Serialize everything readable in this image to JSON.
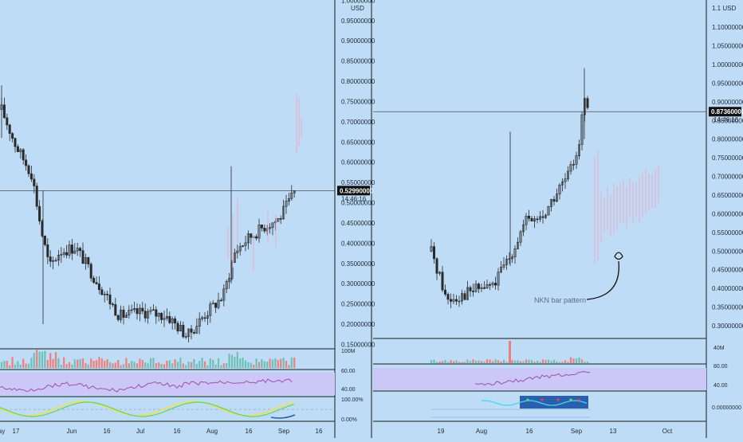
{
  "colors": {
    "background": "#bfdcf6",
    "up": "#2a2a2a",
    "down": "#2a2a2a",
    "ghost": "#e2b3cf",
    "vol_up": "#6ec0b6",
    "vol_down": "#ee7f7a",
    "rsi": "#9c4fae",
    "rsi_band": "#cbc8f8",
    "osc_cyan": "#40d9e8",
    "osc_blue": "#2a5fb0",
    "osc_yellow": "#f5e23a",
    "osc_green": "#5cd66a",
    "osc_red": "#e04848",
    "axis_text": "#1e2a36",
    "divider": "#1a1a1a"
  },
  "chart_data": [
    {
      "type": "candlestick",
      "title": "",
      "currency": "USD",
      "y_ticks": [
        "1.00000000",
        "0.95000000",
        "0.90000000",
        "0.85000000",
        "0.80000000",
        "0.75000000",
        "0.70000000",
        "0.65000000",
        "0.60000000",
        "0.55000000",
        "0.50000000",
        "0.45000000",
        "0.40000000",
        "0.35000000",
        "0.30000000",
        "0.25000000",
        "0.20000000",
        "0.15000000"
      ],
      "ylim": [
        0.15,
        1.0
      ],
      "x_ticks": [
        "ay",
        "17",
        "Jun",
        "16",
        "Jul",
        "16",
        "Aug",
        "16",
        "Sep",
        "16"
      ],
      "last_price": "0.52990000",
      "countdown": "14:46:16",
      "indicators": {
        "volume_label": "100M",
        "rsi_levels": [
          "60.00",
          "40.00"
        ],
        "osc_levels": [
          "100.00%",
          "0.00%"
        ]
      }
    },
    {
      "type": "candlestick",
      "title": "",
      "annotation": "NKN bar pattern",
      "y_ticks": [
        "1.1 USD",
        "1.10000000",
        "1.05000000",
        "1.00000000",
        "0.95000000",
        "0.90000000",
        "0.85000000",
        "0.80000000",
        "0.75000000",
        "0.70000000",
        "0.65000000",
        "0.60000000",
        "0.55000000",
        "0.50000000",
        "0.45000000",
        "0.40000000",
        "0.35000000",
        "0.30000000"
      ],
      "ylim": [
        0.3,
        1.1
      ],
      "x_ticks": [
        "19",
        "Aug",
        "16",
        "Sep",
        "13",
        "Oct"
      ],
      "last_price": "0.87360000",
      "countdown": "14:46:16",
      "indicators": {
        "volume_label": "40M",
        "rsi_levels": [
          "80.00",
          "40.00"
        ],
        "osc_levels": [
          "0.00000000"
        ]
      }
    }
  ]
}
